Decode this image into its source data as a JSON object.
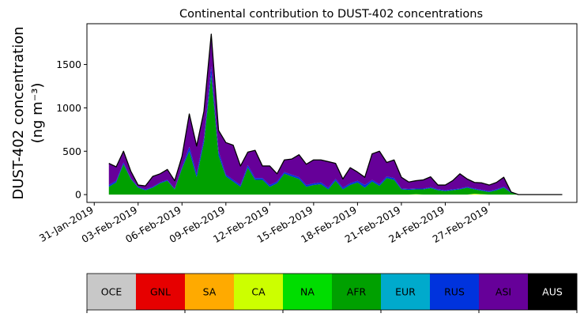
{
  "chart_data": {
    "type": "area",
    "stacked": true,
    "title": "Continental contribution to DUST-402 concentrations",
    "ylabel": "DUST-402 concentration",
    "yunit": "(ng m⁻³)",
    "xlabel": "",
    "ylim": [
      -90,
      1970
    ],
    "xlim": [
      "2019-01-30T12:00",
      "2019-03-05"
    ],
    "yticks": [
      "0",
      "500",
      "1000",
      "1500"
    ],
    "ytick_values": [
      0,
      500,
      1000,
      1500
    ],
    "xticks": [
      "31-Jan-2019",
      "03-Feb-2019",
      "06-Feb-2019",
      "09-Feb-2019",
      "12-Feb-2019",
      "15-Feb-2019",
      "18-Feb-2019",
      "21-Feb-2019",
      "24-Feb-2019",
      "27-Feb-2019"
    ],
    "xtick_dates": [
      "2019-01-31",
      "2019-02-03",
      "2019-02-06",
      "2019-02-09",
      "2019-02-12",
      "2019-02-15",
      "2019-02-18",
      "2019-02-21",
      "2019-02-24",
      "2019-02-27"
    ],
    "x": [
      "2019-02-01",
      "2019-02-01T12:00",
      "2019-02-02",
      "2019-02-02T12:00",
      "2019-02-03",
      "2019-02-03T12:00",
      "2019-02-04",
      "2019-02-04T12:00",
      "2019-02-05",
      "2019-02-05T12:00",
      "2019-02-06",
      "2019-02-06T12:00",
      "2019-02-07",
      "2019-02-07T12:00",
      "2019-02-08",
      "2019-02-08T12:00",
      "2019-02-09",
      "2019-02-09T12:00",
      "2019-02-10",
      "2019-02-10T12:00",
      "2019-02-11",
      "2019-02-11T12:00",
      "2019-02-12",
      "2019-02-12T12:00",
      "2019-02-13",
      "2019-02-13T12:00",
      "2019-02-14",
      "2019-02-14T12:00",
      "2019-02-15",
      "2019-02-15T12:00",
      "2019-02-16",
      "2019-02-16T12:00",
      "2019-02-17",
      "2019-02-17T12:00",
      "2019-02-18",
      "2019-02-18T12:00",
      "2019-02-19",
      "2019-02-19T12:00",
      "2019-02-20",
      "2019-02-20T12:00",
      "2019-02-21",
      "2019-02-21T12:00",
      "2019-02-22",
      "2019-02-22T12:00",
      "2019-02-23",
      "2019-02-23T12:00",
      "2019-02-24",
      "2019-02-24T12:00",
      "2019-02-25",
      "2019-02-25T12:00",
      "2019-02-26",
      "2019-02-26T12:00",
      "2019-02-27",
      "2019-02-27T12:00",
      "2019-02-28",
      "2019-02-28T12:00",
      "2019-03-01",
      "2019-03-01T12:00",
      "2019-03-02",
      "2019-03-02T12:00",
      "2019-03-03",
      "2019-03-03T12:00",
      "2019-03-04"
    ],
    "series": [
      {
        "name": "OCE",
        "color": "#c8c8c8",
        "values": [
          0,
          0,
          0,
          0,
          0,
          0,
          0,
          0,
          0,
          0,
          0,
          0,
          0,
          0,
          0,
          0,
          0,
          0,
          0,
          0,
          0,
          0,
          0,
          0,
          0,
          0,
          0,
          0,
          0,
          0,
          0,
          0,
          0,
          0,
          0,
          0,
          0,
          0,
          0,
          0,
          0,
          0,
          0,
          0,
          0,
          0,
          0,
          0,
          0,
          0,
          0,
          0,
          0,
          0,
          0,
          0,
          0,
          0,
          0,
          0,
          0,
          0,
          0
        ]
      },
      {
        "name": "GNL",
        "color": "#e60000",
        "values": [
          0,
          0,
          0,
          0,
          0,
          0,
          0,
          0,
          0,
          0,
          0,
          0,
          0,
          0,
          0,
          0,
          0,
          0,
          0,
          0,
          0,
          0,
          0,
          0,
          0,
          0,
          0,
          0,
          0,
          0,
          0,
          0,
          0,
          0,
          0,
          0,
          0,
          0,
          0,
          0,
          0,
          0,
          0,
          0,
          0,
          0,
          0,
          0,
          0,
          0,
          0,
          0,
          0,
          0,
          0,
          0,
          0,
          0,
          0,
          0,
          0,
          0,
          0
        ]
      },
      {
        "name": "SA",
        "color": "#ffaa00",
        "values": [
          0,
          0,
          0,
          0,
          0,
          0,
          0,
          0,
          0,
          0,
          0,
          0,
          0,
          0,
          0,
          0,
          0,
          0,
          0,
          0,
          0,
          0,
          0,
          0,
          0,
          0,
          0,
          0,
          0,
          0,
          0,
          0,
          0,
          0,
          0,
          0,
          0,
          0,
          0,
          0,
          0,
          0,
          0,
          0,
          0,
          0,
          0,
          0,
          0,
          0,
          0,
          0,
          0,
          0,
          0,
          0,
          0,
          0,
          0,
          0,
          0,
          0,
          0
        ]
      },
      {
        "name": "CA",
        "color": "#ccff00",
        "values": [
          0,
          0,
          0,
          0,
          0,
          0,
          0,
          0,
          0,
          0,
          0,
          0,
          0,
          0,
          0,
          0,
          0,
          0,
          0,
          0,
          0,
          0,
          0,
          0,
          0,
          0,
          0,
          0,
          0,
          0,
          0,
          0,
          0,
          0,
          0,
          0,
          0,
          0,
          0,
          0,
          0,
          0,
          5,
          0,
          0,
          0,
          0,
          0,
          0,
          0,
          10,
          5,
          0,
          0,
          0,
          0,
          0,
          0,
          0,
          0,
          0,
          0,
          0
        ]
      },
      {
        "name": "NA",
        "color": "#00dd00",
        "values": [
          0,
          0,
          0,
          0,
          0,
          0,
          0,
          0,
          0,
          0,
          0,
          0,
          0,
          0,
          0,
          0,
          0,
          0,
          0,
          0,
          0,
          0,
          0,
          0,
          0,
          0,
          0,
          0,
          0,
          0,
          0,
          0,
          0,
          0,
          0,
          0,
          0,
          0,
          0,
          0,
          0,
          0,
          0,
          0,
          0,
          0,
          0,
          0,
          0,
          0,
          0,
          0,
          0,
          0,
          0,
          0,
          0,
          0,
          0,
          0,
          0,
          0,
          0
        ]
      },
      {
        "name": "AFR",
        "color": "#00a000",
        "values": [
          90,
          140,
          350,
          180,
          80,
          50,
          80,
          130,
          160,
          60,
          300,
          500,
          200,
          600,
          1380,
          450,
          210,
          150,
          90,
          310,
          170,
          170,
          90,
          130,
          240,
          210,
          180,
          90,
          110,
          120,
          60,
          160,
          60,
          110,
          140,
          80,
          150,
          100,
          190,
          170,
          60,
          55,
          55,
          60,
          75,
          50,
          40,
          50,
          60,
          80,
          50,
          40,
          30,
          50,
          80,
          20,
          0,
          0,
          0,
          0,
          0,
          0,
          0
        ]
      },
      {
        "name": "EUR",
        "color": "#00aacc",
        "values": [
          0,
          0,
          0,
          0,
          0,
          0,
          0,
          0,
          0,
          0,
          0,
          0,
          0,
          0,
          0,
          0,
          0,
          0,
          0,
          0,
          0,
          0,
          0,
          0,
          0,
          0,
          0,
          0,
          0,
          0,
          0,
          0,
          0,
          0,
          0,
          0,
          0,
          0,
          0,
          0,
          0,
          0,
          0,
          0,
          0,
          0,
          0,
          0,
          0,
          0,
          0,
          0,
          0,
          0,
          0,
          0,
          0,
          0,
          0,
          0,
          0,
          0,
          0
        ]
      },
      {
        "name": "RUS",
        "color": "#0033dd",
        "values": [
          20,
          20,
          20,
          10,
          10,
          10,
          10,
          10,
          10,
          10,
          20,
          50,
          40,
          50,
          100,
          50,
          20,
          20,
          20,
          30,
          20,
          20,
          20,
          20,
          20,
          20,
          20,
          20,
          20,
          20,
          20,
          20,
          20,
          20,
          20,
          30,
          20,
          20,
          20,
          20,
          10,
          10,
          10,
          10,
          10,
          10,
          10,
          10,
          10,
          10,
          10,
          10,
          10,
          10,
          10,
          10,
          0,
          0,
          0,
          0,
          0,
          0,
          0
        ]
      },
      {
        "name": "ASI",
        "color": "#660099",
        "values": [
          250,
          160,
          130,
          80,
          20,
          40,
          120,
          100,
          120,
          90,
          120,
          380,
          320,
          310,
          370,
          240,
          370,
          400,
          220,
          150,
          320,
          140,
          220,
          90,
          140,
          180,
          260,
          240,
          270,
          260,
          300,
          180,
          100,
          180,
          100,
          90,
          300,
          380,
          160,
          210,
          130,
          80,
          90,
          100,
          120,
          50,
          60,
          100,
          170,
          90,
          70,
          80,
          70,
          80,
          110,
          0,
          0,
          0,
          0,
          0,
          0,
          0,
          0
        ]
      },
      {
        "name": "AUS",
        "color": "#000000",
        "values": [
          0,
          0,
          0,
          0,
          0,
          0,
          0,
          0,
          0,
          0,
          0,
          0,
          0,
          0,
          0,
          0,
          0,
          0,
          0,
          0,
          0,
          0,
          0,
          0,
          0,
          0,
          0,
          0,
          0,
          0,
          0,
          0,
          0,
          0,
          0,
          0,
          0,
          0,
          0,
          0,
          0,
          0,
          0,
          0,
          0,
          0,
          0,
          0,
          0,
          0,
          0,
          0,
          0,
          0,
          0,
          0,
          0,
          0,
          0,
          0,
          0,
          0,
          0
        ]
      }
    ],
    "legend": {
      "placement": "bottom",
      "labels": [
        "OCE",
        "GNL",
        "SA",
        "CA",
        "NA",
        "AFR",
        "EUR",
        "RUS",
        "ASI",
        "AUS"
      ],
      "colors": [
        "#c8c8c8",
        "#e60000",
        "#ffaa00",
        "#ccff00",
        "#00dd00",
        "#00a000",
        "#00aacc",
        "#0033dd",
        "#660099",
        "#000000"
      ],
      "text_colors": [
        "#000000",
        "#000000",
        "#000000",
        "#000000",
        "#000000",
        "#000000",
        "#000000",
        "#000000",
        "#000000",
        "#ffffff"
      ]
    }
  }
}
